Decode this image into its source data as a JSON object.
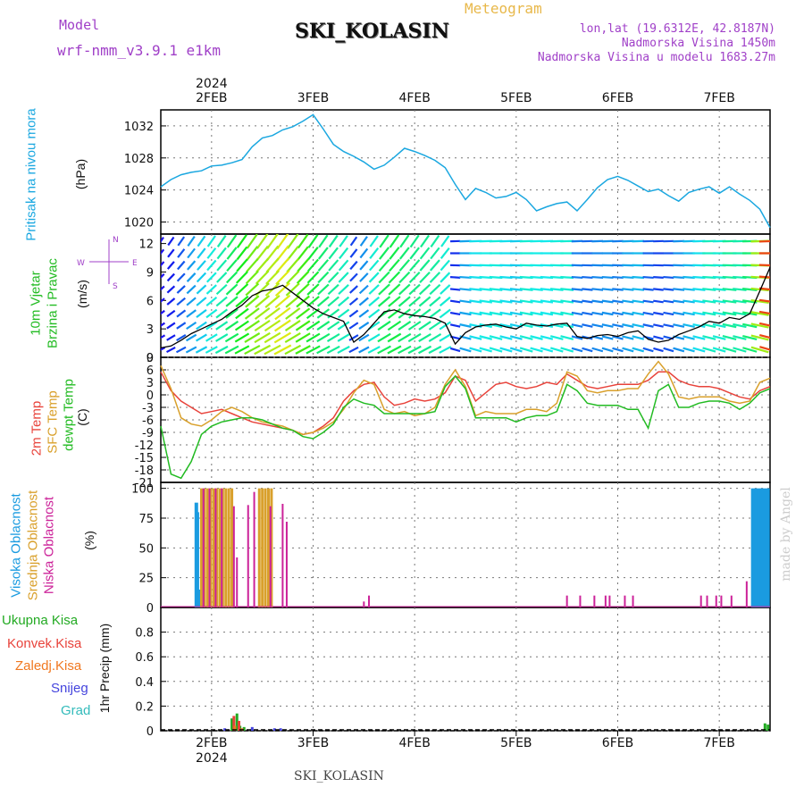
{
  "header": {
    "model_label": "Model",
    "model_name": "wrf-nmm_v3.9.1  e1km",
    "title": "SKI_KOLASIN",
    "meteogram_label": "Meteogram",
    "coords": "lon,lat (19.6312E, 42.8187N)",
    "elevation": "Nadmorska Visina 1450m",
    "model_elevation": "Nadmorska Visina u modelu 1683.27m"
  },
  "footer": {
    "station": "SKI_KOLASIN",
    "watermark": "made by Angel"
  },
  "axes": {
    "year_top": "2024",
    "year_bottom": "2024",
    "dates": [
      "2FEB",
      "3FEB",
      "4FEB",
      "5FEB",
      "6FEB",
      "7FEB"
    ]
  },
  "panels": {
    "pressure": {
      "label": "Pritisak na nivou mora",
      "unit": "(hPa)"
    },
    "wind": {
      "label1": "10m Vjetar",
      "label2": "Brzina i Pravac",
      "unit": "(m/s)",
      "compass_n": "N",
      "compass_s": "S",
      "compass_w": "W",
      "compass_e": "E"
    },
    "temp": {
      "label_2m": "2m Temp",
      "label_sfc": "SFC Temp",
      "label_dew": "dewpt Temp",
      "unit": "(C)"
    },
    "cloud": {
      "label_high": "Visoka Oblacnost",
      "label_mid": "Srednja Oblacnost",
      "label_low": "Niska Oblacnost",
      "unit": "(%)"
    },
    "precip": {
      "label_total": "Ukupna Kisa",
      "label_conv": "Konvek.Kisa",
      "label_frz": "Zaledj.Kisa",
      "label_snow": "Snijeg",
      "label_grad": "Grad",
      "unit": "1hr Precip (mm)"
    }
  },
  "colors": {
    "pressure": "#1aa7e0",
    "temp2m": "#e8433b",
    "sfc": "#d9a02b",
    "dew": "#22bb22",
    "high": "#1a9be0",
    "mid": "#d9a02b",
    "low": "#cc2299",
    "total": "#22aa22",
    "conv": "#e8433b",
    "frz": "#f07820",
    "snow": "#4444dd",
    "grad": "#33bbbb",
    "model": "#a040c8",
    "meteo": "#e8b84a"
  },
  "chart_data": [
    {
      "type": "line",
      "title": "Pritisak na nivou mora",
      "ylabel": "(hPa)",
      "x_days": [
        1.5,
        1.6,
        1.7,
        1.8,
        1.9,
        2.0,
        2.1,
        2.2,
        2.3,
        2.4,
        2.5,
        2.6,
        2.7,
        2.8,
        2.9,
        3.0,
        3.1,
        3.2,
        3.3,
        3.4,
        3.5,
        3.6,
        3.7,
        3.8,
        3.9,
        4.0,
        4.1,
        4.2,
        4.3,
        4.4,
        4.5,
        4.6,
        4.7,
        4.8,
        4.9,
        5.0,
        5.1,
        5.2,
        5.3,
        5.4,
        5.5,
        5.6,
        5.7,
        5.8,
        5.9,
        6.0,
        6.1,
        6.2,
        6.3,
        6.4,
        6.5,
        6.6,
        6.7,
        6.8,
        6.9,
        7.0,
        7.1,
        7.2,
        7.3,
        7.4,
        7.5
      ],
      "values": [
        1024.4,
        1025.3,
        1025.9,
        1026.2,
        1026.4,
        1027.0,
        1027.1,
        1027.4,
        1027.8,
        1029.4,
        1030.5,
        1030.8,
        1031.5,
        1031.9,
        1032.6,
        1033.4,
        1031.6,
        1029.7,
        1028.8,
        1028.2,
        1027.5,
        1026.6,
        1027.1,
        1028.1,
        1029.2,
        1028.8,
        1028.3,
        1027.7,
        1026.8,
        1024.7,
        1022.8,
        1024.2,
        1023.7,
        1023.0,
        1023.2,
        1023.7,
        1022.8,
        1021.4,
        1021.9,
        1022.3,
        1022.5,
        1021.4,
        1022.8,
        1024.3,
        1025.3,
        1025.7,
        1025.2,
        1024.5,
        1023.8,
        1024.1,
        1023.3,
        1022.6,
        1023.7,
        1024.1,
        1024.4,
        1023.6,
        1024.4,
        1023.5,
        1022.7,
        1021.6,
        1019.3
      ],
      "ylim": [
        1018.5,
        1034
      ],
      "yticks": [
        1020,
        1024,
        1028,
        1032
      ]
    },
    {
      "type": "line",
      "title": "10m Vjetar Brzina i Pravac",
      "ylabel": "(m/s)",
      "series": [
        {
          "name": "10m Vjetar",
          "x_days": [
            1.5,
            1.6,
            1.7,
            1.8,
            1.9,
            2.0,
            2.1,
            2.2,
            2.3,
            2.4,
            2.5,
            2.6,
            2.7,
            2.8,
            2.9,
            3.0,
            3.1,
            3.2,
            3.3,
            3.4,
            3.5,
            3.6,
            3.7,
            3.8,
            3.9,
            4.0,
            4.1,
            4.2,
            4.3,
            4.4,
            4.5,
            4.6,
            4.7,
            4.8,
            4.9,
            5.0,
            5.1,
            5.2,
            5.3,
            5.4,
            5.5,
            5.6,
            5.7,
            5.8,
            5.9,
            6.0,
            6.1,
            6.2,
            6.3,
            6.4,
            6.5,
            6.6,
            6.7,
            6.8,
            6.9,
            7.0,
            7.1,
            7.2,
            7.3,
            7.4,
            7.5
          ],
          "values": [
            1.0,
            1.2,
            1.8,
            2.5,
            3.0,
            3.5,
            4.0,
            4.8,
            5.5,
            6.5,
            7.0,
            7.2,
            7.6,
            6.8,
            6.0,
            5.2,
            4.6,
            4.2,
            3.8,
            1.6,
            2.4,
            3.6,
            4.8,
            5.0,
            4.6,
            4.4,
            4.3,
            4.1,
            3.6,
            1.4,
            2.6,
            3.2,
            3.4,
            3.5,
            3.2,
            3.0,
            3.6,
            3.4,
            3.3,
            3.5,
            3.6,
            2.2,
            2.0,
            2.3,
            2.4,
            2.2,
            2.6,
            2.8,
            1.9,
            1.6,
            1.8,
            2.4,
            2.8,
            3.2,
            3.8,
            3.6,
            4.2,
            4.0,
            4.6,
            7.0,
            9.5
          ]
        }
      ],
      "ylim": [
        0,
        13
      ],
      "yticks": [
        0,
        3,
        6,
        9,
        12
      ]
    },
    {
      "type": "line",
      "title": "2m Temp / SFC Temp / dewpt Temp",
      "ylabel": "(C)",
      "x_days": [
        1.5,
        1.6,
        1.7,
        1.8,
        1.9,
        2.0,
        2.1,
        2.2,
        2.3,
        2.4,
        2.5,
        2.6,
        2.7,
        2.8,
        2.9,
        3.0,
        3.1,
        3.2,
        3.3,
        3.4,
        3.5,
        3.6,
        3.7,
        3.8,
        3.9,
        4.0,
        4.1,
        4.2,
        4.3,
        4.4,
        4.5,
        4.6,
        4.7,
        4.8,
        4.9,
        5.0,
        5.1,
        5.2,
        5.3,
        5.4,
        5.5,
        5.6,
        5.7,
        5.8,
        5.9,
        6.0,
        6.1,
        6.2,
        6.3,
        6.4,
        6.5,
        6.6,
        6.7,
        6.8,
        6.9,
        7.0,
        7.1,
        7.2,
        7.3,
        7.4,
        7.5
      ],
      "series": [
        {
          "name": "2m Temp",
          "values": [
            5.5,
            1.0,
            -1.5,
            -3.0,
            -4.5,
            -4.0,
            -3.5,
            -4.5,
            -5.5,
            -6.5,
            -7.0,
            -7.5,
            -8.0,
            -8.5,
            -9.5,
            -9.0,
            -7.5,
            -5.5,
            -1.5,
            1.0,
            2.5,
            3.0,
            -0.5,
            -2.5,
            -2.0,
            -1.0,
            -1.5,
            -1.0,
            0.5,
            4.5,
            3.5,
            -1.5,
            0.5,
            2.5,
            3.0,
            2.0,
            1.5,
            2.0,
            3.0,
            2.5,
            5.0,
            3.5,
            2.0,
            1.5,
            2.0,
            2.5,
            2.5,
            2.5,
            3.5,
            5.5,
            5.5,
            3.5,
            2.5,
            2.0,
            2.0,
            1.5,
            0.5,
            -0.5,
            -1.0,
            1.0,
            2.0
          ]
        },
        {
          "name": "SFC Temp",
          "values": [
            7.0,
            1.5,
            -5.5,
            -7.0,
            -7.5,
            -6.0,
            -4.0,
            -3.0,
            -4.0,
            -5.5,
            -6.5,
            -7.0,
            -7.5,
            -8.5,
            -9.5,
            -9.0,
            -8.0,
            -6.5,
            -3.5,
            0.5,
            3.5,
            2.5,
            -3.5,
            -4.5,
            -4.0,
            -5.0,
            -4.5,
            -3.0,
            2.5,
            6.0,
            2.0,
            -5.0,
            -4.0,
            -4.5,
            -4.5,
            -4.5,
            -3.5,
            -3.5,
            -4.0,
            -2.0,
            5.5,
            4.5,
            1.0,
            0.5,
            1.0,
            1.0,
            1.5,
            1.5,
            5.0,
            8.0,
            5.0,
            -0.5,
            -1.0,
            -0.5,
            -0.5,
            -0.5,
            -1.5,
            -2.0,
            -1.5,
            3.0,
            4.0
          ]
        },
        {
          "name": "dewpt Temp",
          "values": [
            -7.5,
            -19.0,
            -20.0,
            -16.0,
            -9.5,
            -7.5,
            -6.5,
            -6.0,
            -5.5,
            -5.5,
            -6.0,
            -7.0,
            -8.0,
            -8.5,
            -10.0,
            -10.5,
            -9.0,
            -7.0,
            -3.0,
            -1.0,
            -2.0,
            -2.5,
            -4.5,
            -4.5,
            -4.5,
            -4.5,
            -4.5,
            -4.0,
            2.0,
            4.5,
            1.5,
            -5.5,
            -5.5,
            -5.5,
            -5.5,
            -6.5,
            -5.5,
            -5.0,
            -5.0,
            -4.0,
            2.5,
            1.0,
            -2.0,
            -2.5,
            -2.5,
            -2.5,
            -3.5,
            -3.5,
            -8.0,
            1.0,
            2.5,
            -3.0,
            -3.0,
            -2.0,
            -1.5,
            -1.5,
            -2.0,
            -3.5,
            -2.0,
            0.5,
            1.5
          ]
        }
      ],
      "ylim": [
        -21,
        9
      ],
      "yticks": [
        -21,
        -18,
        -15,
        -12,
        -9,
        -6,
        -3,
        0,
        3,
        6,
        9
      ]
    },
    {
      "type": "bar",
      "title": "Visoka / Srednja / Niska Oblacnost",
      "ylabel": "(%)",
      "series": [
        {
          "name": "Visoka Oblacnost",
          "x_days": [
            1.85,
            1.86,
            1.87,
            7.33,
            7.36,
            7.39,
            7.42,
            7.45,
            7.48
          ],
          "values": [
            88,
            80,
            15,
            100,
            100,
            100,
            100,
            100,
            100
          ]
        },
        {
          "name": "Srednja Oblacnost",
          "x_days": [
            1.9,
            1.93,
            1.96,
            1.99,
            2.02,
            2.05,
            2.08,
            2.11,
            2.14,
            2.17,
            2.2,
            2.47,
            2.5,
            2.53,
            2.56,
            2.59
          ],
          "values": [
            100,
            100,
            100,
            100,
            100,
            100,
            100,
            100,
            100,
            100,
            100,
            100,
            100,
            100,
            100,
            100
          ]
        },
        {
          "name": "Niska Oblacnost",
          "x_days": [
            1.92,
            1.98,
            2.04,
            2.1,
            2.22,
            2.25,
            2.36,
            2.42,
            2.58,
            2.7,
            2.74,
            3.5,
            3.55,
            5.5,
            5.63,
            5.77,
            5.88,
            5.92,
            6.07,
            6.15,
            6.82,
            6.88,
            6.97,
            7.02,
            7.12,
            7.27
          ],
          "values": [
            100,
            100,
            100,
            100,
            85,
            42,
            86,
            97,
            85,
            87,
            72,
            5,
            10,
            10,
            10,
            10,
            10,
            10,
            10,
            10,
            10,
            10,
            10,
            10,
            10,
            22
          ]
        }
      ],
      "ylim": [
        0,
        100
      ],
      "yticks": [
        0,
        25,
        50,
        75,
        100
      ]
    },
    {
      "type": "bar",
      "title": "1hr Precip",
      "ylabel": "(mm)",
      "series": [
        {
          "name": "Ukupna Kisa",
          "x_days": [
            2.2,
            2.25,
            2.28,
            2.32,
            7.45,
            7.48
          ],
          "values": [
            0.1,
            0.14,
            0.04,
            0.03,
            0.06,
            0.05
          ]
        },
        {
          "name": "Konvek.Kisa",
          "x_days": [
            2.22,
            2.27
          ],
          "values": [
            0.12,
            0.08
          ]
        },
        {
          "name": "Zaledj.Kisa",
          "x_days": [
            2.23,
            2.3
          ],
          "values": [
            0.04,
            0.02
          ]
        },
        {
          "name": "Snijeg",
          "x_days": [
            2.13,
            2.4,
            2.62,
            2.68
          ],
          "values": [
            0.02,
            0.03,
            0.02,
            0.02
          ]
        },
        {
          "name": "Grad",
          "x_days": [],
          "values": []
        }
      ],
      "ylim": [
        0,
        1.0
      ],
      "yticks": [
        0,
        0.2,
        0.4,
        0.6,
        0.8
      ]
    }
  ]
}
